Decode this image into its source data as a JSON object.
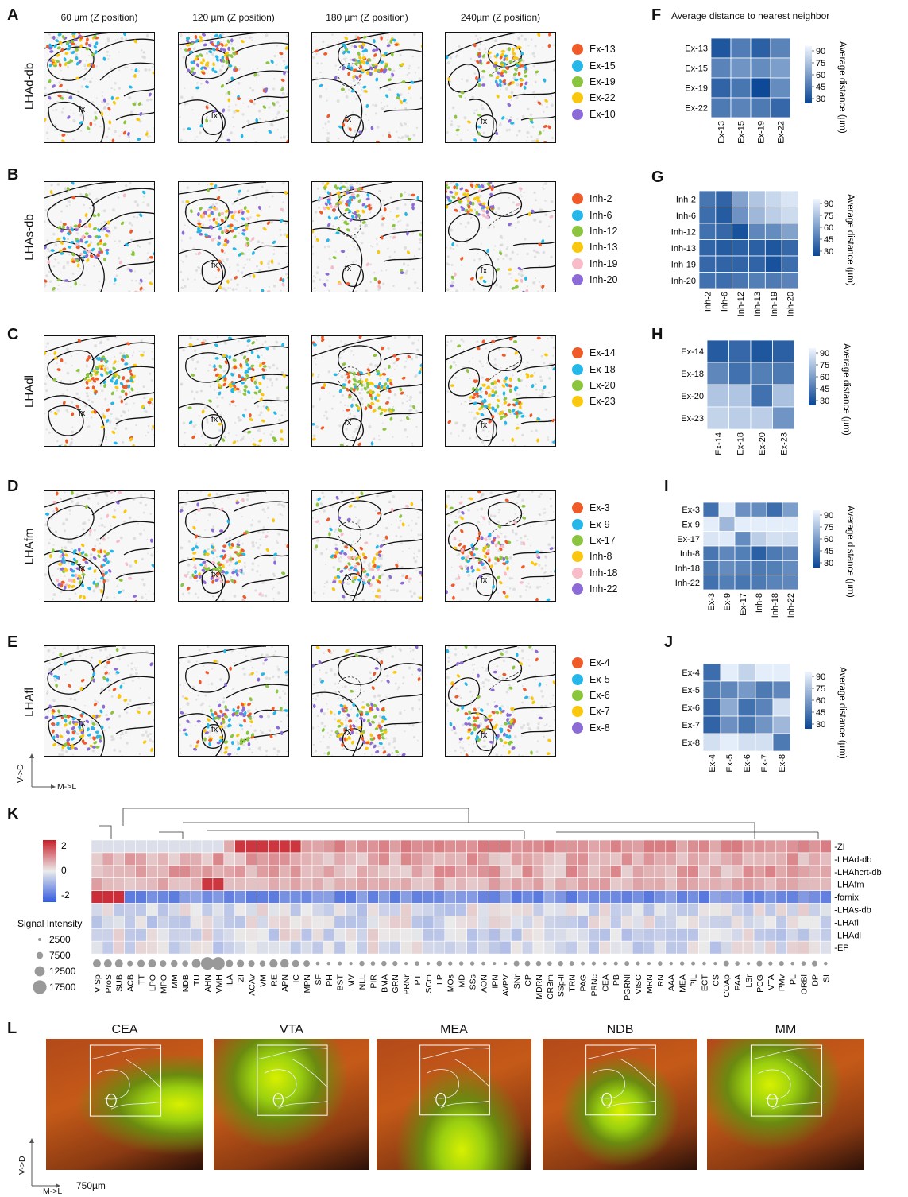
{
  "panel_letters": [
    "A",
    "B",
    "C",
    "D",
    "E",
    "F",
    "G",
    "H",
    "I",
    "J",
    "K",
    "L"
  ],
  "z_positions": [
    "60 µm (Z position)",
    "120 µm (Z position)",
    "180 µm (Z position)",
    "240µm (Z position)"
  ],
  "fx_label": "fx",
  "rows": [
    {
      "letter": "A",
      "name": "LHAd-db",
      "legend": [
        "Ex-13",
        "Ex-15",
        "Ex-19",
        "Ex-22",
        "Ex-10"
      ],
      "colors": [
        "#f05a28",
        "#25b7e8",
        "#8bc43f",
        "#f9c80e",
        "#8c6bd6"
      ]
    },
    {
      "letter": "B",
      "name": "LHAs-db",
      "legend": [
        "Inh-2",
        "Inh-6",
        "Inh-12",
        "Inh-13",
        "Inh-19",
        "Inh-20"
      ],
      "colors": [
        "#f05a28",
        "#25b7e8",
        "#8bc43f",
        "#f9c80e",
        "#f8bcc8",
        "#8c6bd6"
      ]
    },
    {
      "letter": "C",
      "name": "LHAdl",
      "legend": [
        "Ex-14",
        "Ex-18",
        "Ex-20",
        "Ex-23"
      ],
      "colors": [
        "#f05a28",
        "#25b7e8",
        "#8bc43f",
        "#f9c80e"
      ]
    },
    {
      "letter": "D",
      "name": "LHAfm",
      "legend": [
        "Ex-3",
        "Ex-9",
        "Ex-17",
        "Inh-8",
        "Inh-18",
        "Inh-22"
      ],
      "colors": [
        "#f05a28",
        "#25b7e8",
        "#8bc43f",
        "#f9c80e",
        "#f8bcc8",
        "#8c6bd6"
      ]
    },
    {
      "letter": "E",
      "name": "LHAfl",
      "legend": [
        "Ex-4",
        "Ex-5",
        "Ex-6",
        "Ex-7",
        "Ex-8"
      ],
      "colors": [
        "#f05a28",
        "#25b7e8",
        "#8bc43f",
        "#f9c80e",
        "#8c6bd6"
      ]
    }
  ],
  "orientation": {
    "vd": "V->D",
    "ml": "M->L"
  },
  "F_title": "Average distance to nearest neighbor",
  "colorbar": {
    "ticks": [
      "90",
      "75",
      "60",
      "45",
      "30"
    ],
    "label": "Average distance (µm)"
  },
  "heatmaps": [
    {
      "letter": "F",
      "labels": [
        "Ex-13",
        "Ex-15",
        "Ex-19",
        "Ex-22"
      ],
      "values": [
        [
          28,
          45,
          32,
          48
        ],
        [
          48,
          56,
          52,
          60
        ],
        [
          34,
          42,
          22,
          52
        ],
        [
          44,
          48,
          44,
          36
        ]
      ]
    },
    {
      "letter": "G",
      "labels": [
        "Inh-2",
        "Inh-6",
        "Inh-12",
        "Inh-13",
        "Inh-19",
        "Inh-20"
      ],
      "values": [
        [
          42,
          34,
          62,
          78,
          86,
          92
        ],
        [
          38,
          30,
          55,
          72,
          82,
          88
        ],
        [
          40,
          36,
          26,
          50,
          52,
          62
        ],
        [
          34,
          30,
          32,
          32,
          28,
          36
        ],
        [
          36,
          34,
          34,
          34,
          26,
          38
        ],
        [
          40,
          38,
          42,
          46,
          44,
          48
        ]
      ]
    },
    {
      "letter": "H",
      "labels": [
        "Ex-14",
        "Ex-18",
        "Ex-20",
        "Ex-23"
      ],
      "values": [
        [
          30,
          36,
          28,
          32
        ],
        [
          50,
          40,
          46,
          44
        ],
        [
          78,
          78,
          40,
          76
        ],
        [
          84,
          82,
          82,
          56
        ]
      ]
    },
    {
      "letter": "I",
      "labels": [
        "Ex-3",
        "Ex-9",
        "Ex-17",
        "Inh-8",
        "Inh-18",
        "Inh-22"
      ],
      "values": [
        [
          40,
          96,
          54,
          52,
          38,
          60
        ],
        [
          96,
          72,
          96,
          96,
          96,
          96
        ],
        [
          92,
          94,
          52,
          82,
          90,
          88
        ],
        [
          42,
          50,
          46,
          32,
          44,
          50
        ],
        [
          44,
          52,
          48,
          44,
          46,
          52
        ],
        [
          40,
          46,
          42,
          44,
          48,
          50
        ]
      ]
    },
    {
      "letter": "J",
      "labels": [
        "Ex-4",
        "Ex-5",
        "Ex-6",
        "Ex-7",
        "Ex-8"
      ],
      "values": [
        [
          38,
          96,
          84,
          96,
          96
        ],
        [
          44,
          50,
          58,
          44,
          50
        ],
        [
          36,
          66,
          40,
          48,
          90
        ],
        [
          34,
          54,
          42,
          56,
          72
        ],
        [
          90,
          96,
          90,
          90,
          44
        ]
      ]
    }
  ],
  "K": {
    "colorbar_ticks": [
      "2",
      "0",
      "-2"
    ],
    "row_labels": [
      "ZI",
      "LHAd-db",
      "LHAhcrt-db",
      "LHAfm",
      "fornix",
      "LHAs-db",
      "LHAfl",
      "LHAdl",
      "EP"
    ],
    "col_labels": [
      "VISp",
      "ProS",
      "SUB",
      "ACB",
      "TT",
      "LPO",
      "MPO",
      "MM",
      "NDB",
      "TU",
      "AHN",
      "VMH",
      "ILA",
      "ZI",
      "ACAv",
      "VM",
      "RE",
      "APN",
      "IC",
      "MPN",
      "SF",
      "PH",
      "BST",
      "MV",
      "NLL",
      "PIR",
      "BMA",
      "GRN",
      "PRNr",
      "PT",
      "SCm",
      "LP",
      "MOs",
      "MD",
      "SSs",
      "AON",
      "IPN",
      "AVPV",
      "SNr",
      "CP",
      "MDRN",
      "ORBm",
      "SSp-ll",
      "TRN",
      "PAG",
      "PRNc",
      "CEA",
      "PB",
      "PGRNl",
      "VISC",
      "MRN",
      "RN",
      "AAA",
      "MEA",
      "PIL",
      "ECT",
      "CS",
      "COAp",
      "PAA",
      "LSr",
      "PCG",
      "VTA",
      "PMv",
      "PL",
      "ORBl",
      "DP",
      "SI"
    ],
    "size_legend_title": "Signal Intensity",
    "size_legend": [
      "2500",
      "7500",
      "12500",
      "17500"
    ]
  },
  "L": {
    "titles": [
      "CEA",
      "VTA",
      "MEA",
      "NDB",
      "MM"
    ],
    "scale": "750µm",
    "vd": "V->D",
    "ml": "M->L"
  }
}
